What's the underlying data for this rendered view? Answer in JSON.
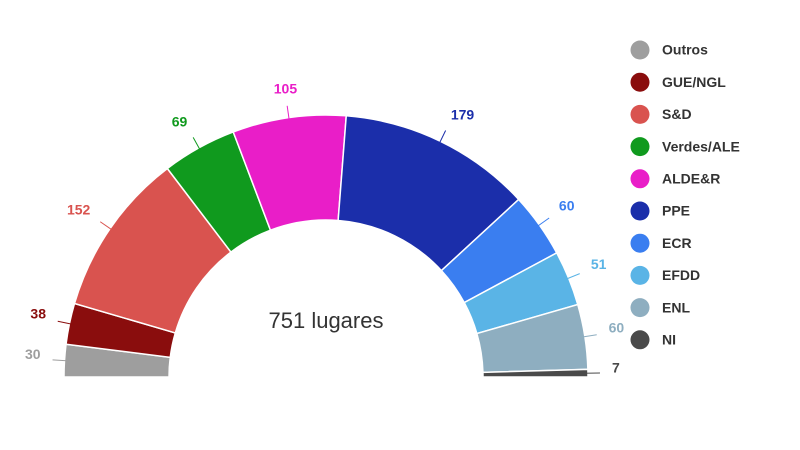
{
  "chart_data": {
    "type": "parliament",
    "center_label": "751 lugares",
    "categories": [
      "Outros",
      "GUE/NGL",
      "S&D",
      "Verdes/ALE",
      "ALDE&R",
      "PPE",
      "ECR",
      "EFDD",
      "ENL",
      "NI"
    ],
    "values": [
      30,
      38,
      152,
      69,
      105,
      179,
      60,
      51,
      60,
      7
    ],
    "colors": [
      "#9e9e9e",
      "#8a0d0d",
      "#d9534f",
      "#109a1e",
      "#e91ec8",
      "#1b2eaa",
      "#3a7ef0",
      "#5ab4e6",
      "#8eaec0",
      "#4a4a4a"
    ],
    "legend": "right"
  }
}
